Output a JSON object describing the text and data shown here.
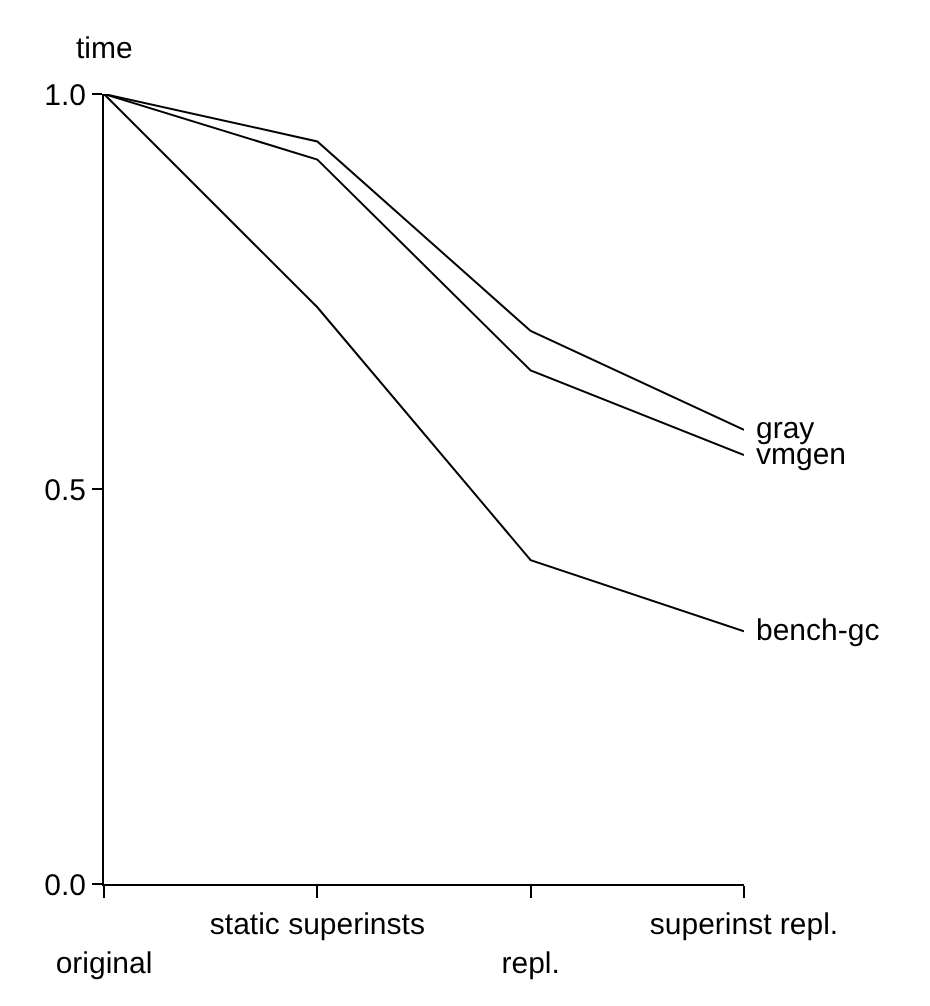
{
  "chart_data": {
    "type": "line",
    "ylabel": "time",
    "categories": [
      "original",
      "static superinsts",
      "repl.",
      "superinst repl."
    ],
    "series": [
      {
        "name": "gray",
        "color": "#000000",
        "values": [
          1.0,
          0.94,
          0.7,
          0.575
        ]
      },
      {
        "name": "vmgen",
        "color": "#000000",
        "values": [
          1.0,
          0.917,
          0.65,
          0.543
        ]
      },
      {
        "name": "bench-gc",
        "color": "#000000",
        "values": [
          1.0,
          0.73,
          0.41,
          0.32
        ]
      }
    ],
    "ylim": [
      0,
      1
    ],
    "yticks": [
      {
        "value": 0,
        "label": "0.0"
      },
      {
        "value": 0.5,
        "label": "0.5"
      },
      {
        "value": 1,
        "label": "1.0"
      }
    ],
    "legend": false,
    "marker": "none",
    "line_style": "solid"
  }
}
